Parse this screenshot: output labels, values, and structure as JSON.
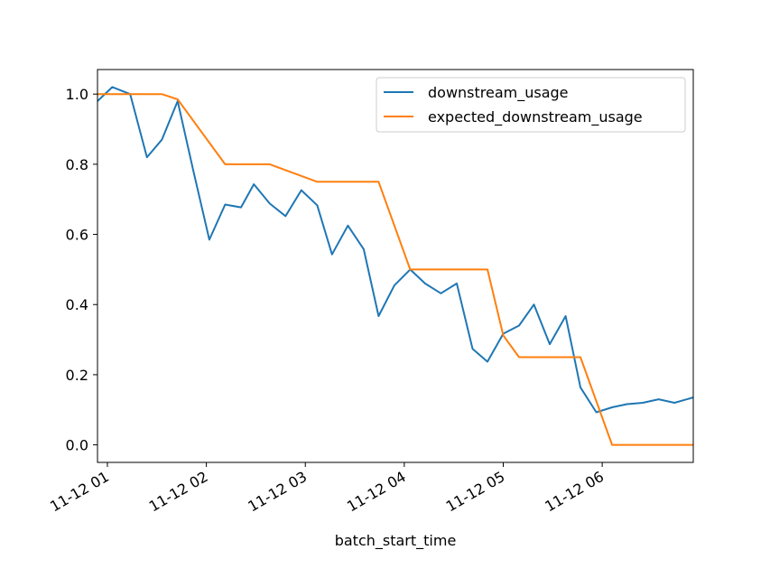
{
  "chart_data": {
    "type": "line",
    "title": "",
    "xlabel": "batch_start_time",
    "ylabel": "",
    "x_tick_labels": [
      "11-12 01",
      "11-12 02",
      "11-12 03",
      "11-12 04",
      "11-12 05",
      "11-12 06"
    ],
    "x_tick_hours": [
      1,
      2,
      3,
      4,
      5,
      6
    ],
    "y_tick_labels": [
      "0.0",
      "0.2",
      "0.4",
      "0.6",
      "0.8",
      "1.0"
    ],
    "y_tick_values": [
      0.0,
      0.2,
      0.4,
      0.6,
      0.8,
      1.0
    ],
    "xlim": [
      0.9,
      6.92
    ],
    "ylim": [
      -0.05,
      1.07
    ],
    "legend_position": "upper right",
    "series": [
      {
        "name": "downstream_usage",
        "color": "#1f77b4",
        "x": [
          0.9,
          1.05,
          1.23,
          1.4,
          1.55,
          1.71,
          1.87,
          2.03,
          2.19,
          2.35,
          2.48,
          2.64,
          2.8,
          2.96,
          3.12,
          3.27,
          3.43,
          3.59,
          3.74,
          3.9,
          4.06,
          4.21,
          4.37,
          4.53,
          4.69,
          4.84,
          5.0,
          5.16,
          5.31,
          5.47,
          5.63,
          5.78,
          5.94,
          6.1,
          6.25,
          6.41,
          6.57,
          6.73,
          6.92
        ],
        "y": [
          0.98,
          1.02,
          1.0,
          0.82,
          0.87,
          0.98,
          0.78,
          0.585,
          0.685,
          0.677,
          0.743,
          0.688,
          0.652,
          0.726,
          0.683,
          0.543,
          0.625,
          0.558,
          0.367,
          0.455,
          0.5,
          0.46,
          0.432,
          0.46,
          0.274,
          0.237,
          0.317,
          0.34,
          0.4,
          0.287,
          0.367,
          0.164,
          0.093,
          0.107,
          0.116,
          0.12,
          0.13,
          0.12,
          0.135
        ]
      },
      {
        "name": "expected_downstream_usage",
        "color": "#ff7f0e",
        "x": [
          0.9,
          1.23,
          1.55,
          1.71,
          2.19,
          2.64,
          3.12,
          3.74,
          4.06,
          4.84,
          5.0,
          5.16,
          5.78,
          6.1,
          6.92
        ],
        "y": [
          1.0,
          1.0,
          1.0,
          0.985,
          0.8,
          0.8,
          0.75,
          0.75,
          0.5,
          0.5,
          0.312,
          0.25,
          0.25,
          0.0,
          0.0
        ]
      }
    ]
  }
}
